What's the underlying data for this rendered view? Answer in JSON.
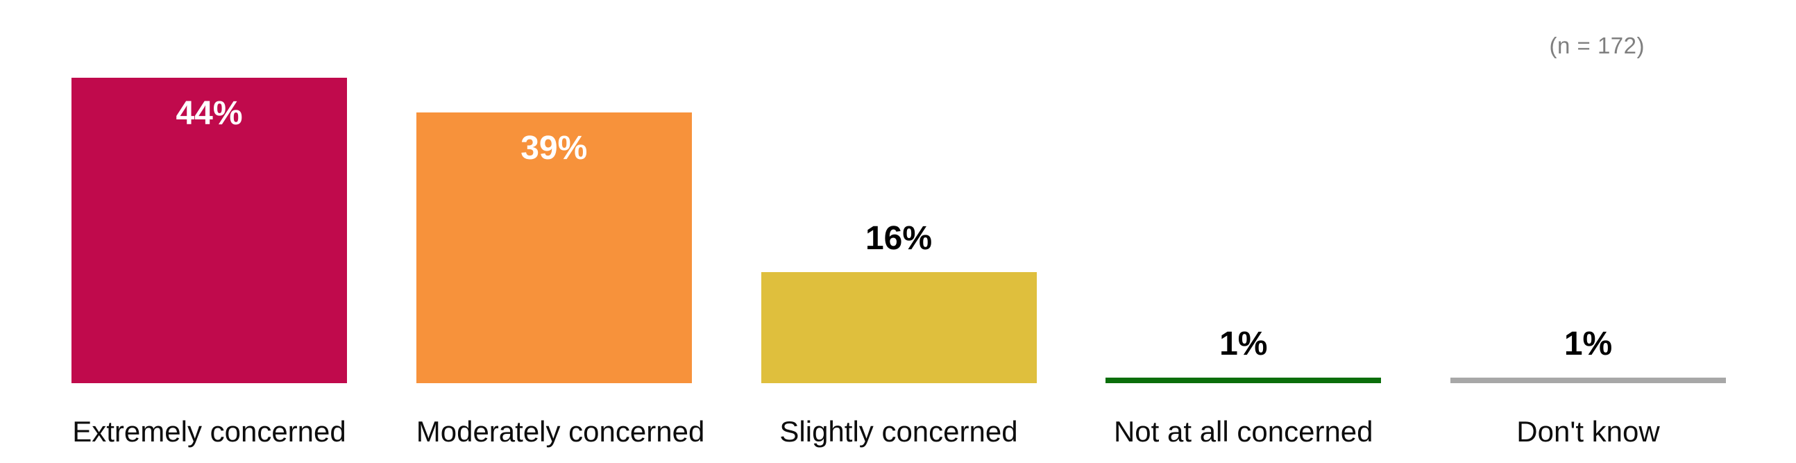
{
  "chart": {
    "sample_size_label": "(n = 172)"
  },
  "chart_data": {
    "type": "bar",
    "title": "",
    "xlabel": "",
    "ylabel": "",
    "categories": [
      "Extremely concerned",
      "Moderately concerned",
      "Slightly concerned",
      "Not at all concerned",
      "Don't know"
    ],
    "values": [
      44,
      39,
      16,
      1,
      1
    ],
    "value_labels": [
      "44%",
      "39%",
      "16%",
      "1%",
      "1%"
    ],
    "bar_colors": [
      "#C00A4C",
      "#F7923B",
      "#DFBF3D",
      "#0B6E0B",
      "#A7A7A7"
    ],
    "value_label_positions": [
      "inside",
      "inside",
      "above",
      "above",
      "above"
    ],
    "value_label_colors": [
      "#FFFFFF",
      "#FFFFFF",
      "#000000",
      "#000000",
      "#000000"
    ],
    "annotation": "(n = 172)",
    "ylim": [
      0,
      55
    ],
    "grid": false,
    "legend": "none",
    "axis_lines": "none"
  }
}
